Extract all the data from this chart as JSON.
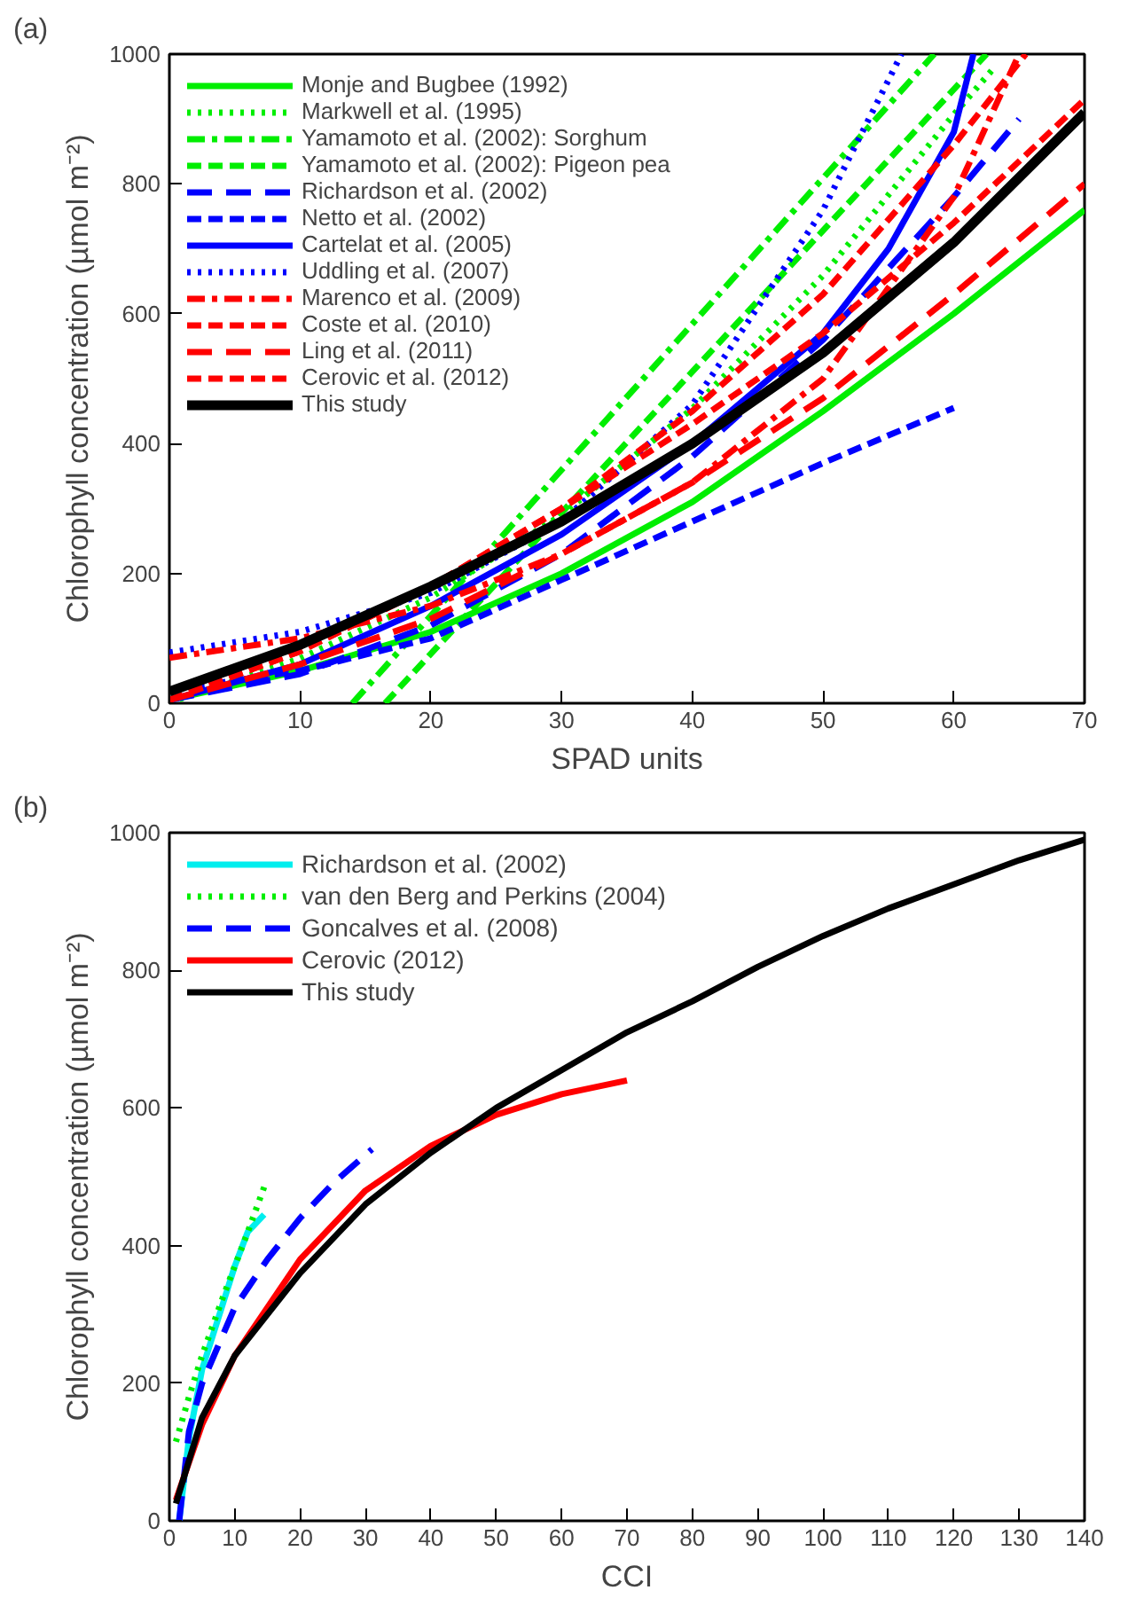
{
  "chart_data": [
    {
      "type": "line",
      "xlabel": "SPAD units",
      "ylabel": "Chlorophyll concentration (µmol m⁻²)",
      "annotations": [
        "(a)"
      ],
      "xlim": [
        0,
        70
      ],
      "ylim": [
        0,
        1000
      ],
      "xticks": [
        0,
        10,
        20,
        30,
        40,
        50,
        60,
        70
      ],
      "yticks": [
        0,
        200,
        400,
        600,
        800,
        1000
      ],
      "grid": false,
      "legend": "top left",
      "series": [
        {
          "name": "Monje and Bugbee (1992)",
          "color": "#00ee00",
          "line_style": "solid",
          "x": [
            0,
            10,
            20,
            30,
            40,
            50,
            60,
            70
          ],
          "values": [
            5,
            50,
            110,
            200,
            310,
            450,
            600,
            760
          ]
        },
        {
          "name": "Markwell et al. (1995)",
          "color": "#00ee00",
          "line_style": "dotted",
          "x": [
            0,
            10,
            20,
            30,
            40,
            50,
            60,
            63
          ],
          "values": [
            1,
            69,
            163,
            290,
            454,
            659,
            907,
            977
          ]
        },
        {
          "name": "Yamamoto et al. (2002): Sorghum",
          "color": "#00ee00",
          "line_style": "dashdot",
          "x": [
            14,
            58.5
          ],
          "values": [
            0,
            1000
          ]
        },
        {
          "name": "Yamamoto et al. (2002): Pigeon pea",
          "color": "#00ee00",
          "line_style": "dashed",
          "x": [
            16.5,
            62.5
          ],
          "values": [
            0,
            1000
          ]
        },
        {
          "name": "Richardson et al. (2002)",
          "color": "#0000ff",
          "line_style": "longdash",
          "x": [
            0,
            10,
            20,
            30,
            40,
            50,
            60,
            65
          ],
          "values": [
            5,
            45,
            120,
            230,
            380,
            560,
            780,
            900
          ]
        },
        {
          "name": "Netto et al. (2002)",
          "color": "#0000ff",
          "line_style": "dashed",
          "x": [
            0,
            10,
            20,
            30,
            40,
            50,
            60
          ],
          "values": [
            20,
            50,
            100,
            190,
            280,
            370,
            455
          ]
        },
        {
          "name": "Cartelat et al. (2005)",
          "color": "#0000ff",
          "line_style": "solid",
          "x": [
            0,
            10,
            20,
            30,
            40,
            50,
            55,
            60,
            61.5
          ],
          "values": [
            5,
            60,
            150,
            260,
            400,
            570,
            700,
            880,
            1000
          ]
        },
        {
          "name": "Uddling et al. (2007)",
          "color": "#0000ff",
          "line_style": "dotted",
          "x": [
            0,
            10,
            20,
            30,
            40,
            50,
            56
          ],
          "values": [
            78,
            110,
            170,
            280,
            460,
            760,
            1000
          ]
        },
        {
          "name": "Marenco et al. (2009)",
          "color": "#ff0000",
          "line_style": "dashdot",
          "x": [
            0,
            10,
            20,
            30,
            40,
            50,
            60,
            65
          ],
          "values": [
            70,
            100,
            150,
            230,
            340,
            500,
            780,
            1000
          ]
        },
        {
          "name": "Coste et al. (2010)",
          "color": "#ff0000",
          "line_style": "dashed",
          "x": [
            0,
            10,
            20,
            30,
            40,
            50,
            60,
            65.5
          ],
          "values": [
            5,
            80,
            180,
            300,
            450,
            630,
            860,
            1000
          ]
        },
        {
          "name": "Ling et al. (2011)",
          "color": "#ff0000",
          "line_style": "longdash",
          "x": [
            0,
            10,
            20,
            30,
            40,
            50,
            60,
            70
          ],
          "values": [
            5,
            60,
            130,
            230,
            340,
            470,
            630,
            800
          ]
        },
        {
          "name": "Cerovic et al. (2012)",
          "color": "#ff0000",
          "line_style": "dashed",
          "x": [
            0,
            10,
            20,
            30,
            40,
            50,
            60,
            70
          ],
          "values": [
            5,
            80,
            180,
            300,
            430,
            570,
            740,
            930
          ]
        },
        {
          "name": "This study",
          "color": "#000000",
          "line_style": "solid",
          "x": [
            0,
            10,
            20,
            30,
            40,
            50,
            60,
            70
          ],
          "values": [
            18,
            90,
            180,
            280,
            400,
            540,
            710,
            910
          ]
        }
      ]
    },
    {
      "type": "line",
      "xlabel": "CCI",
      "ylabel": "Chlorophyll concentration (µmol m⁻²)",
      "annotations": [
        "(b)"
      ],
      "xlim": [
        0,
        140
      ],
      "ylim": [
        0,
        1000
      ],
      "xticks": [
        0,
        10,
        20,
        30,
        40,
        50,
        60,
        70,
        80,
        90,
        100,
        110,
        120,
        130,
        140
      ],
      "yticks": [
        0,
        200,
        400,
        600,
        800,
        1000
      ],
      "grid": false,
      "legend": "top left",
      "series": [
        {
          "name": "Richardson et al. (2002)",
          "color": "#00eeee",
          "line_style": "solid",
          "x": [
            1.5,
            3,
            5,
            8,
            10,
            12,
            14.5
          ],
          "values": [
            0,
            120,
            220,
            310,
            370,
            420,
            445
          ]
        },
        {
          "name": "van den Berg and Perkins (2004)",
          "color": "#00ee00",
          "line_style": "dotted",
          "x": [
            1,
            3,
            5,
            8,
            10,
            12,
            14.5
          ],
          "values": [
            115,
            180,
            240,
            320,
            370,
            420,
            485
          ]
        },
        {
          "name": "Goncalves et al. (2008)",
          "color": "#0000ff",
          "line_style": "longdash",
          "x": [
            1.5,
            3,
            5,
            10,
            15,
            20,
            25,
            31
          ],
          "values": [
            0,
            130,
            200,
            310,
            380,
            440,
            490,
            540
          ]
        },
        {
          "name": "Cerovic (2012)",
          "color": "#ff0000",
          "line_style": "solid",
          "x": [
            1,
            5,
            10,
            20,
            30,
            40,
            50,
            60,
            70
          ],
          "values": [
            30,
            140,
            240,
            380,
            480,
            545,
            590,
            620,
            640
          ]
        },
        {
          "name": "This study",
          "color": "#000000",
          "line_style": "solid",
          "x": [
            1,
            5,
            10,
            20,
            30,
            40,
            50,
            60,
            70,
            80,
            90,
            100,
            110,
            120,
            130,
            140
          ],
          "values": [
            25,
            150,
            240,
            360,
            460,
            535,
            600,
            655,
            710,
            755,
            805,
            850,
            890,
            925,
            960,
            990
          ]
        }
      ]
    }
  ]
}
